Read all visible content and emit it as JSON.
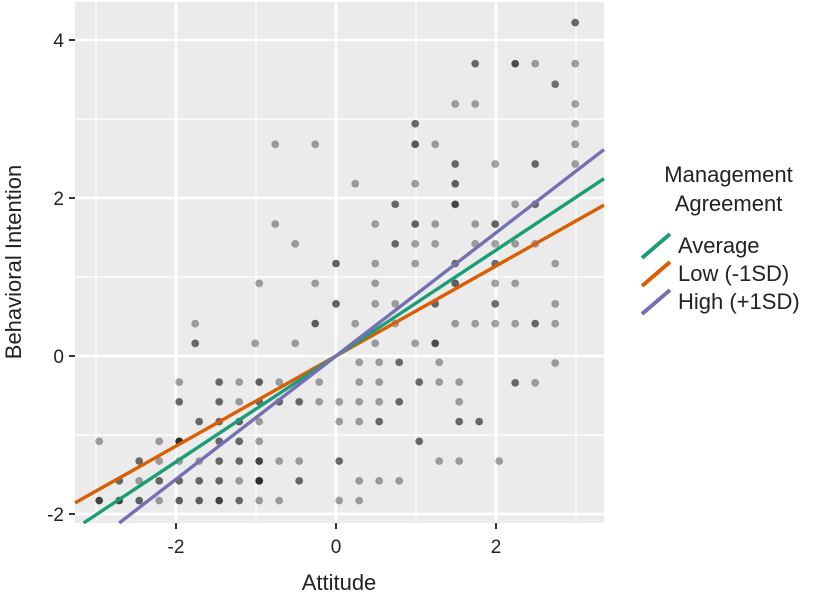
{
  "chart_data": {
    "type": "scatter",
    "title": "",
    "xlabel": "Attitude",
    "ylabel": "Behavioral Intention",
    "xlim": [
      -3.28,
      3.35
    ],
    "ylim": [
      -2.12,
      4.47
    ],
    "x_ticks": [
      -2,
      0,
      2
    ],
    "y_ticks": [
      -2,
      0,
      2,
      4
    ],
    "x_tick_labels": [
      "-2",
      "0",
      "2"
    ],
    "y_tick_labels": [
      "-2",
      "0",
      "2",
      "4"
    ],
    "grid": true,
    "panel_background": "#ebebeb",
    "grid_color": "#ffffff",
    "legend": {
      "title": "Management Agreement",
      "title_lines": [
        "Management",
        "Agreement"
      ],
      "position": "right",
      "entries": [
        {
          "label": "Average",
          "color": "#1b9e77"
        },
        {
          "label": "Low (-1SD)",
          "color": "#d95f02"
        },
        {
          "label": "High (+1SD)",
          "color": "#7570b3"
        }
      ]
    },
    "lines": [
      {
        "name": "Average",
        "color": "#1b9e77",
        "intercept": 0.0,
        "slope": 0.67
      },
      {
        "name": "Low (-1SD)",
        "color": "#d95f02",
        "intercept": 0.0,
        "slope": 0.57
      },
      {
        "name": "High (+1SD)",
        "color": "#7570b3",
        "intercept": 0.0,
        "slope": 0.78
      }
    ],
    "points_note": "semi-transparent dark points; darker = overlapping observations",
    "points": [
      {
        "x": 2.99,
        "y": 4.22,
        "o": 0.75
      },
      {
        "x": 1.74,
        "y": 3.7,
        "o": 0.75
      },
      {
        "x": 2.24,
        "y": 3.7,
        "o": 0.9
      },
      {
        "x": 2.49,
        "y": 3.7,
        "o": 0.45
      },
      {
        "x": 2.74,
        "y": 3.44,
        "o": 0.7
      },
      {
        "x": 2.99,
        "y": 3.7,
        "o": 0.45
      },
      {
        "x": 1.49,
        "y": 3.19,
        "o": 0.45
      },
      {
        "x": 1.74,
        "y": 3.19,
        "o": 0.45
      },
      {
        "x": 2.99,
        "y": 3.19,
        "o": 0.45
      },
      {
        "x": 0.99,
        "y": 2.94,
        "o": 0.75
      },
      {
        "x": 2.99,
        "y": 2.94,
        "o": 0.45
      },
      {
        "x": 0.99,
        "y": 2.68,
        "o": 0.85
      },
      {
        "x": 1.24,
        "y": 2.68,
        "o": 0.45
      },
      {
        "x": 2.99,
        "y": 2.68,
        "o": 0.45
      },
      {
        "x": -0.76,
        "y": 2.68,
        "o": 0.45
      },
      {
        "x": -0.26,
        "y": 2.68,
        "o": 0.45
      },
      {
        "x": 1.49,
        "y": 2.43,
        "o": 0.75
      },
      {
        "x": 1.99,
        "y": 2.43,
        "o": 0.45
      },
      {
        "x": 2.49,
        "y": 2.43,
        "o": 0.75
      },
      {
        "x": 2.99,
        "y": 2.43,
        "o": 0.45
      },
      {
        "x": 0.24,
        "y": 2.18,
        "o": 0.45
      },
      {
        "x": 0.99,
        "y": 2.18,
        "o": 0.45
      },
      {
        "x": 1.49,
        "y": 2.18,
        "o": 0.8
      },
      {
        "x": 1.49,
        "y": 1.92,
        "o": 0.95
      },
      {
        "x": 2.24,
        "y": 1.92,
        "o": 0.45
      },
      {
        "x": 2.49,
        "y": 1.92,
        "o": 0.75
      },
      {
        "x": 0.74,
        "y": 1.92,
        "o": 0.75
      },
      {
        "x": -0.76,
        "y": 1.67,
        "o": 0.45
      },
      {
        "x": 0.49,
        "y": 1.67,
        "o": 0.45
      },
      {
        "x": 0.99,
        "y": 1.67,
        "o": 0.8
      },
      {
        "x": 1.24,
        "y": 1.67,
        "o": 0.45
      },
      {
        "x": 1.74,
        "y": 1.67,
        "o": 0.45
      },
      {
        "x": 1.99,
        "y": 1.67,
        "o": 0.8
      },
      {
        "x": -0.51,
        "y": 1.42,
        "o": 0.45
      },
      {
        "x": 0.74,
        "y": 1.42,
        "o": 0.75
      },
      {
        "x": 0.99,
        "y": 1.42,
        "o": 0.45
      },
      {
        "x": 1.24,
        "y": 1.42,
        "o": 0.45
      },
      {
        "x": 1.74,
        "y": 1.42,
        "o": 0.45
      },
      {
        "x": 1.99,
        "y": 1.42,
        "o": 0.45
      },
      {
        "x": 2.24,
        "y": 1.42,
        "o": 0.45
      },
      {
        "x": 2.49,
        "y": 1.42,
        "o": 0.45
      },
      {
        "x": 0.0,
        "y": 1.17,
        "o": 0.8
      },
      {
        "x": 0.49,
        "y": 1.17,
        "o": 0.45
      },
      {
        "x": 0.99,
        "y": 1.17,
        "o": 0.45
      },
      {
        "x": 1.49,
        "y": 1.17,
        "o": 0.75
      },
      {
        "x": 1.99,
        "y": 1.17,
        "o": 0.75
      },
      {
        "x": 2.74,
        "y": 1.17,
        "o": 0.45
      },
      {
        "x": -0.96,
        "y": 0.92,
        "o": 0.45
      },
      {
        "x": -0.26,
        "y": 0.92,
        "o": 0.45
      },
      {
        "x": 0.49,
        "y": 0.92,
        "o": 0.45
      },
      {
        "x": 1.49,
        "y": 0.92,
        "o": 0.8
      },
      {
        "x": 1.99,
        "y": 0.92,
        "o": 0.45
      },
      {
        "x": 2.24,
        "y": 0.92,
        "o": 0.45
      },
      {
        "x": 0.0,
        "y": 0.66,
        "o": 0.8
      },
      {
        "x": 0.49,
        "y": 0.66,
        "o": 0.45
      },
      {
        "x": 0.74,
        "y": 0.66,
        "o": 0.45
      },
      {
        "x": 1.24,
        "y": 0.66,
        "o": 0.75
      },
      {
        "x": 1.99,
        "y": 0.66,
        "o": 0.75
      },
      {
        "x": 2.74,
        "y": 0.66,
        "o": 0.45
      },
      {
        "x": -1.76,
        "y": 0.41,
        "o": 0.45
      },
      {
        "x": -0.26,
        "y": 0.41,
        "o": 0.8
      },
      {
        "x": 0.24,
        "y": 0.41,
        "o": 0.45
      },
      {
        "x": 0.74,
        "y": 0.41,
        "o": 0.45
      },
      {
        "x": 1.49,
        "y": 0.41,
        "o": 0.45
      },
      {
        "x": 1.74,
        "y": 0.41,
        "o": 0.45
      },
      {
        "x": 1.99,
        "y": 0.41,
        "o": 0.45
      },
      {
        "x": 2.24,
        "y": 0.41,
        "o": 0.45
      },
      {
        "x": 2.49,
        "y": 0.41,
        "o": 0.75
      },
      {
        "x": 2.74,
        "y": 0.41,
        "o": 0.45
      },
      {
        "x": -1.76,
        "y": 0.16,
        "o": 0.75
      },
      {
        "x": -1.01,
        "y": 0.16,
        "o": 0.45
      },
      {
        "x": -0.51,
        "y": 0.16,
        "o": 0.45
      },
      {
        "x": 0.49,
        "y": 0.16,
        "o": 0.45
      },
      {
        "x": 0.99,
        "y": 0.16,
        "o": 0.45
      },
      {
        "x": 1.24,
        "y": 0.16,
        "o": 0.9
      },
      {
        "x": 2.24,
        "y": -0.34,
        "o": 0.75
      },
      {
        "x": 2.49,
        "y": -0.34,
        "o": 0.45
      },
      {
        "x": 2.74,
        "y": -0.09,
        "o": 0.45
      },
      {
        "x": -2.96,
        "y": -1.08,
        "o": 0.45
      },
      {
        "x": -1.96,
        "y": -1.08,
        "o": 0.45
      },
      {
        "x": -2.21,
        "y": -1.08,
        "o": 0.45
      },
      {
        "x": -1.21,
        "y": -0.83,
        "o": 0.8
      },
      {
        "x": -0.96,
        "y": -0.83,
        "o": 0.45
      },
      {
        "x": -1.96,
        "y": -0.33,
        "o": 0.45
      },
      {
        "x": -1.46,
        "y": -0.33,
        "o": 0.75
      },
      {
        "x": -1.21,
        "y": -0.33,
        "o": 0.45
      },
      {
        "x": -0.96,
        "y": -0.33,
        "o": 0.8
      },
      {
        "x": -0.71,
        "y": -0.33,
        "o": 0.45
      },
      {
        "x": -1.96,
        "y": -0.58,
        "o": 0.75
      },
      {
        "x": -1.46,
        "y": -0.58,
        "o": 0.75
      },
      {
        "x": -1.21,
        "y": -0.58,
        "o": 0.45
      },
      {
        "x": -0.71,
        "y": -0.58,
        "o": 0.75
      },
      {
        "x": -0.46,
        "y": -0.58,
        "o": 0.75
      },
      {
        "x": -0.21,
        "y": -0.58,
        "o": 0.45
      },
      {
        "x": -0.96,
        "y": -0.58,
        "o": 0.75
      },
      {
        "x": -1.46,
        "y": -0.83,
        "o": 0.75
      },
      {
        "x": -1.71,
        "y": -0.83,
        "o": 0.75
      },
      {
        "x": -1.96,
        "y": -1.08,
        "o": 0.95
      },
      {
        "x": -1.46,
        "y": -1.08,
        "o": 0.75
      },
      {
        "x": -1.21,
        "y": -1.08,
        "o": 0.75
      },
      {
        "x": -0.96,
        "y": -1.08,
        "o": 0.45
      },
      {
        "x": -2.21,
        "y": -1.33,
        "o": 0.45
      },
      {
        "x": -2.46,
        "y": -1.33,
        "o": 0.75
      },
      {
        "x": -1.96,
        "y": -1.33,
        "o": 0.45
      },
      {
        "x": -1.71,
        "y": -1.33,
        "o": 0.45
      },
      {
        "x": -1.46,
        "y": -1.33,
        "o": 0.75
      },
      {
        "x": -1.21,
        "y": -1.33,
        "o": 0.75
      },
      {
        "x": -0.96,
        "y": -1.33,
        "o": 0.75
      },
      {
        "x": -2.71,
        "y": -1.58,
        "o": 0.75
      },
      {
        "x": -2.46,
        "y": -1.58,
        "o": 0.45
      },
      {
        "x": -2.21,
        "y": -1.58,
        "o": 0.75
      },
      {
        "x": -1.96,
        "y": -1.58,
        "o": 0.75
      },
      {
        "x": -1.71,
        "y": -1.58,
        "o": 0.75
      },
      {
        "x": -1.46,
        "y": -1.58,
        "o": 0.75
      },
      {
        "x": -1.21,
        "y": -1.58,
        "o": 0.45
      },
      {
        "x": -0.96,
        "y": -1.58,
        "o": 0.75
      },
      {
        "x": -2.96,
        "y": -1.83,
        "o": 0.95
      },
      {
        "x": -2.71,
        "y": -1.83,
        "o": 0.95
      },
      {
        "x": -2.46,
        "y": -1.83,
        "o": 0.8
      },
      {
        "x": -2.21,
        "y": -1.83,
        "o": 0.45
      },
      {
        "x": -1.96,
        "y": -1.83,
        "o": 0.8
      },
      {
        "x": -1.71,
        "y": -1.83,
        "o": 0.8
      },
      {
        "x": -1.46,
        "y": -1.83,
        "o": 0.95
      },
      {
        "x": -1.21,
        "y": -1.83,
        "o": 0.75
      },
      {
        "x": -0.96,
        "y": -1.83,
        "o": 0.45
      },
      {
        "x": -0.71,
        "y": -1.83,
        "o": 0.45
      },
      {
        "x": 0.04,
        "y": -1.83,
        "o": 0.45
      },
      {
        "x": 0.29,
        "y": -1.83,
        "o": 0.45
      },
      {
        "x": -0.96,
        "y": -1.33,
        "o": 0.45
      },
      {
        "x": -0.71,
        "y": -1.33,
        "o": 0.45
      },
      {
        "x": -0.46,
        "y": -1.33,
        "o": 0.45
      },
      {
        "x": 0.04,
        "y": -1.33,
        "o": 0.75
      },
      {
        "x": -0.96,
        "y": -1.58,
        "o": 0.75
      },
      {
        "x": -0.46,
        "y": -1.58,
        "o": 0.75
      },
      {
        "x": 0.29,
        "y": -1.58,
        "o": 0.45
      },
      {
        "x": 0.54,
        "y": -1.58,
        "o": 0.45
      },
      {
        "x": 0.79,
        "y": -1.58,
        "o": 0.45
      },
      {
        "x": 0.04,
        "y": -0.83,
        "o": 0.45
      },
      {
        "x": 0.29,
        "y": -0.83,
        "o": 0.45
      },
      {
        "x": 0.54,
        "y": -0.83,
        "o": 0.75
      },
      {
        "x": -0.21,
        "y": -0.33,
        "o": 0.45
      },
      {
        "x": 0.29,
        "y": -0.33,
        "o": 0.45
      },
      {
        "x": 0.54,
        "y": -0.33,
        "o": 0.45
      },
      {
        "x": 1.04,
        "y": -0.33,
        "o": 0.75
      },
      {
        "x": 1.29,
        "y": -0.33,
        "o": 0.45
      },
      {
        "x": 1.54,
        "y": -0.33,
        "o": 0.45
      },
      {
        "x": 0.04,
        "y": -0.58,
        "o": 0.45
      },
      {
        "x": 0.29,
        "y": -0.58,
        "o": 0.45
      },
      {
        "x": 0.54,
        "y": -0.58,
        "o": 0.45
      },
      {
        "x": 0.79,
        "y": -0.58,
        "o": 0.75
      },
      {
        "x": 0.29,
        "y": -0.08,
        "o": 0.45
      },
      {
        "x": 0.54,
        "y": -0.08,
        "o": 0.45
      },
      {
        "x": 0.79,
        "y": -0.08,
        "o": 0.75
      },
      {
        "x": 1.04,
        "y": -1.08,
        "o": 0.75
      },
      {
        "x": 1.29,
        "y": -1.33,
        "o": 0.45
      },
      {
        "x": 1.54,
        "y": -0.58,
        "o": 0.45
      },
      {
        "x": 1.54,
        "y": -0.83,
        "o": 0.75
      },
      {
        "x": 1.79,
        "y": -0.83,
        "o": 0.75
      },
      {
        "x": 1.54,
        "y": -1.33,
        "o": 0.45
      },
      {
        "x": 2.04,
        "y": -1.33,
        "o": 0.45
      },
      {
        "x": 1.29,
        "y": -0.08,
        "o": 0.45
      }
    ]
  },
  "axes": {
    "x_title": "Attitude",
    "y_title": "Behavioral Intention"
  },
  "legend": {
    "title_line1": "Management",
    "title_line2": "Agreement",
    "items": [
      {
        "label": "Average",
        "color": "#1b9e77"
      },
      {
        "label": "Low (-1SD)",
        "color": "#d95f02"
      },
      {
        "label": "High (+1SD)",
        "color": "#7570b3"
      }
    ]
  }
}
